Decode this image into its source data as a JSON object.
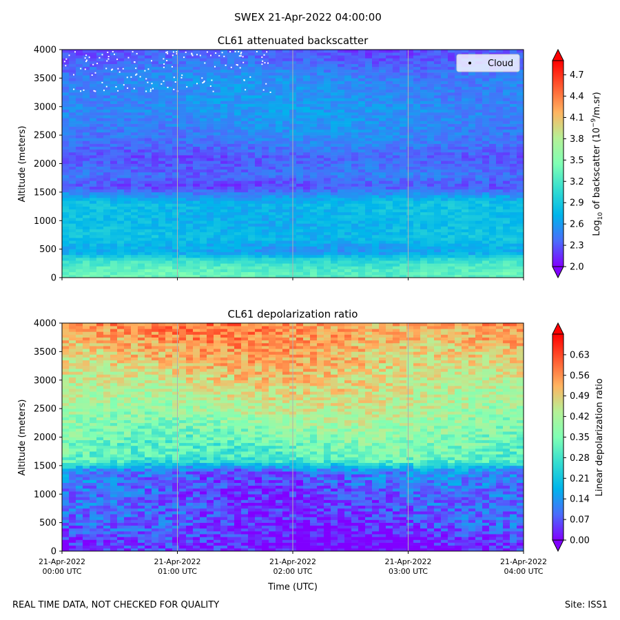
{
  "figure": {
    "suptitle": "SWEX 21-Apr-2022 04:00:00",
    "footer_left": "REAL TIME DATA, NOT CHECKED FOR QUALITY",
    "footer_right": "Site: ISS1"
  },
  "colors": {
    "colormap": [
      "#8000ff",
      "#4a6dfb",
      "#00b5eb",
      "#34ddd0",
      "#80ffb4",
      "#b6f096",
      "#ffb360",
      "#ff5a30",
      "#ff0000"
    ],
    "grid": "#b0b0b0"
  },
  "chart_data": [
    {
      "type": "heatmap",
      "title": "CL61 attenuated backscatter",
      "ylabel": "Altitude (meters)",
      "xlabel": "",
      "x_range": [
        "2022-04-21T00:00",
        "2022-04-21T04:00"
      ],
      "x_ticks": [
        "2022-04-21T00:00",
        "2022-04-21T01:00",
        "2022-04-21T02:00",
        "2022-04-21T03:00",
        "2022-04-21T04:00"
      ],
      "ylim": [
        0,
        4000
      ],
      "y_ticks": [
        0,
        500,
        1000,
        1500,
        2000,
        2500,
        3000,
        3500,
        4000
      ],
      "vertical_grid": true,
      "legend": {
        "position": "upper-right",
        "entries": [
          "Cloud"
        ]
      },
      "colorbar": {
        "label_main": "Log",
        "label_sub": "10",
        "label_mid": " of backscatter (10",
        "label_sup": "−9",
        "label_end": "/m.sr)",
        "range": [
          2.0,
          4.9
        ],
        "ticks": [
          "2.0",
          "2.3",
          "2.6",
          "2.9",
          "3.2",
          "3.5",
          "3.8",
          "4.1",
          "4.4",
          "4.7"
        ],
        "extend": "both"
      },
      "profile": [
        {
          "alt": 100,
          "value": 3.3
        },
        {
          "alt": 300,
          "value": 3.1
        },
        {
          "alt": 450,
          "value": 2.6
        },
        {
          "alt": 700,
          "value": 2.8
        },
        {
          "alt": 1000,
          "value": 2.75
        },
        {
          "alt": 1300,
          "value": 2.8
        },
        {
          "alt": 1450,
          "value": 2.55
        },
        {
          "alt": 1600,
          "value": 2.25
        },
        {
          "alt": 1800,
          "value": 2.4
        },
        {
          "alt": 2100,
          "value": 2.3
        },
        {
          "alt": 2400,
          "value": 2.45
        },
        {
          "alt": 2900,
          "value": 2.55
        },
        {
          "alt": 3500,
          "value": 2.5
        },
        {
          "alt": 3900,
          "value": 2.3
        }
      ]
    },
    {
      "type": "heatmap",
      "title": "CL61 depolarization ratio",
      "ylabel": "Altitude (meters)",
      "xlabel": "Time (UTC)",
      "x_range": [
        "2022-04-21T00:00",
        "2022-04-21T04:00"
      ],
      "x_ticks": [
        "2022-04-21T00:00",
        "2022-04-21T01:00",
        "2022-04-21T02:00",
        "2022-04-21T03:00",
        "2022-04-21T04:00"
      ],
      "x_tick_labels": [
        [
          "21-Apr-2022",
          "00:00 UTC"
        ],
        [
          "21-Apr-2022",
          "01:00 UTC"
        ],
        [
          "21-Apr-2022",
          "02:00 UTC"
        ],
        [
          "21-Apr-2022",
          "03:00 UTC"
        ],
        [
          "21-Apr-2022",
          "04:00 UTC"
        ]
      ],
      "ylim": [
        0,
        4000
      ],
      "y_ticks": [
        0,
        500,
        1000,
        1500,
        2000,
        2500,
        3000,
        3500,
        4000
      ],
      "vertical_grid": true,
      "colorbar": {
        "label": "Linear depolarization ratio",
        "range": [
          0.0,
          0.7
        ],
        "ticks": [
          "0.00",
          "0.07",
          "0.14",
          "0.21",
          "0.28",
          "0.35",
          "0.42",
          "0.49",
          "0.56",
          "0.63"
        ],
        "extend": "both"
      },
      "profile": [
        {
          "alt": 100,
          "value": 0.02
        },
        {
          "alt": 500,
          "value": 0.06
        },
        {
          "alt": 1000,
          "value": 0.07
        },
        {
          "alt": 1400,
          "value": 0.1
        },
        {
          "alt": 1600,
          "value": 0.3
        },
        {
          "alt": 2000,
          "value": 0.35
        },
        {
          "alt": 2500,
          "value": 0.42
        },
        {
          "alt": 3000,
          "value": 0.47
        },
        {
          "alt": 3500,
          "value": 0.52
        },
        {
          "alt": 4000,
          "value": 0.56
        }
      ]
    }
  ]
}
